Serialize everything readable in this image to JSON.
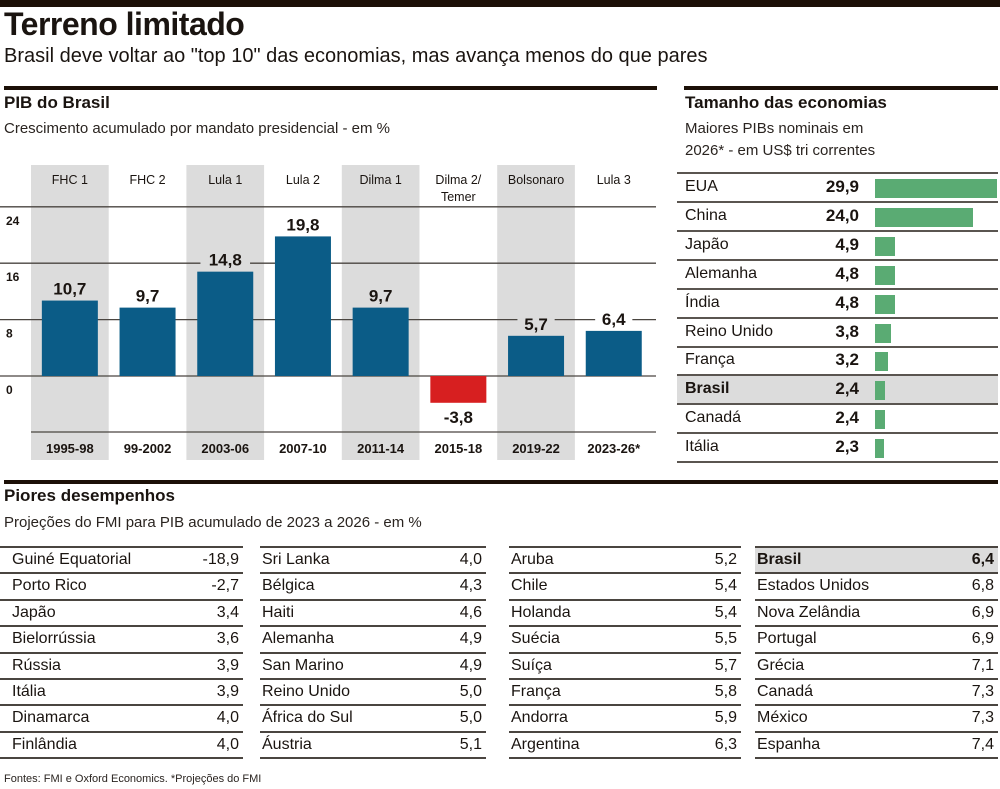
{
  "header": {
    "title": "Terreno limitado",
    "subtitle": "Brasil deve voltar ao \"top 10\" das economias, mas avança menos do que pares"
  },
  "pib_section": {
    "title": "PIB do Brasil",
    "subtitle": "Crescimento acumulado por mandato presidencial - em %"
  },
  "economies_section": {
    "title": "Tamanho das economias",
    "subtitle_line1": "Maiores PIBs nominais em",
    "subtitle_line2": "2026* - em US$ tri correntes"
  },
  "worst_section": {
    "title": "Piores desempenhos",
    "subtitle": "Projeções do FMI para PIB acumulado de 2023 a 2026 - em %"
  },
  "source": "Fontes: FMI e Oxford Economics. *Projeções do FMI",
  "colors": {
    "bar_positive": "#0b5c87",
    "bar_negative": "#d71f20",
    "bar_green": "#5aab73",
    "band_gray": "#dcdcdc",
    "highlight_gray": "#dcdcdc"
  },
  "chart_data": [
    {
      "type": "bar",
      "title": "PIB do Brasil",
      "subtitle": "Crescimento acumulado por mandato presidencial - em %",
      "categories": [
        "FHC 1",
        "FHC 2",
        "Lula 1",
        "Lula 2",
        "Dilma 1",
        "Dilma 2/ Temer",
        "Bolsonaro",
        "Lula 3"
      ],
      "category_lines": [
        [
          "FHC 1"
        ],
        [
          "FHC 2"
        ],
        [
          "Lula 1"
        ],
        [
          "Lula 2"
        ],
        [
          "Dilma 1"
        ],
        [
          "Dilma 2/",
          "Temer"
        ],
        [
          "Bolsonaro"
        ],
        [
          "Lula 3"
        ]
      ],
      "periods": [
        "1995-98",
        "99-2002",
        "2003-06",
        "2007-10",
        "2011-14",
        "2015-18",
        "2019-22",
        "2023-26*"
      ],
      "values": [
        10.7,
        9.7,
        14.8,
        19.8,
        9.7,
        -3.8,
        5.7,
        6.4
      ],
      "value_labels": [
        "10,7",
        "9,7",
        "14,8",
        "19,8",
        "9,7",
        "-3,8",
        "5,7",
        "6,4"
      ],
      "yticks": [
        0,
        8,
        16,
        24
      ],
      "ylim": [
        -8,
        27
      ],
      "grid": true,
      "xlabel": "",
      "ylabel": ""
    },
    {
      "type": "bar",
      "orientation": "horizontal",
      "title": "Tamanho das economias",
      "subtitle": "Maiores PIBs nominais em 2026* - em US$ tri correntes",
      "categories": [
        "EUA",
        "China",
        "Japão",
        "Alemanha",
        "Índia",
        "Reino Unido",
        "França",
        "Brasil",
        "Canadá",
        "Itália"
      ],
      "values": [
        29.9,
        24.0,
        4.9,
        4.8,
        4.8,
        3.8,
        3.2,
        2.4,
        2.4,
        2.3
      ],
      "value_labels": [
        "29,9",
        "24,0",
        "4,9",
        "4,8",
        "4,8",
        "3,8",
        "3,2",
        "2,4",
        "2,4",
        "2,3"
      ],
      "highlight": "Brasil",
      "xlim": [
        0,
        29.9
      ]
    },
    {
      "type": "table",
      "title": "Piores desempenhos",
      "subtitle": "Projeções do FMI para PIB acumulado de 2023 a 2026 - em %",
      "highlight": "Brasil",
      "columns": [
        [
          {
            "country": "Guiné Equatorial",
            "value": "-18,9"
          },
          {
            "country": "Porto Rico",
            "value": "-2,7"
          },
          {
            "country": "Japão",
            "value": "3,4"
          },
          {
            "country": "Bielorrússia",
            "value": "3,6"
          },
          {
            "country": "Rússia",
            "value": "3,9"
          },
          {
            "country": "Itália",
            "value": "3,9"
          },
          {
            "country": "Dinamarca",
            "value": "4,0"
          },
          {
            "country": "Finlândia",
            "value": "4,0"
          }
        ],
        [
          {
            "country": "Sri Lanka",
            "value": "4,0"
          },
          {
            "country": "Bélgica",
            "value": "4,3"
          },
          {
            "country": "Haiti",
            "value": "4,6"
          },
          {
            "country": "Alemanha",
            "value": "4,9"
          },
          {
            "country": "San Marino",
            "value": "4,9"
          },
          {
            "country": "Reino Unido",
            "value": "5,0"
          },
          {
            "country": "África do Sul",
            "value": "5,0"
          },
          {
            "country": "Áustria",
            "value": "5,1"
          }
        ],
        [
          {
            "country": "Aruba",
            "value": "5,2"
          },
          {
            "country": "Chile",
            "value": "5,4"
          },
          {
            "country": "Holanda",
            "value": "5,4"
          },
          {
            "country": "Suécia",
            "value": "5,5"
          },
          {
            "country": "Suíça",
            "value": "5,7"
          },
          {
            "country": "França",
            "value": "5,8"
          },
          {
            "country": "Andorra",
            "value": "5,9"
          },
          {
            "country": "Argentina",
            "value": "6,3"
          }
        ],
        [
          {
            "country": "Brasil",
            "value": "6,4"
          },
          {
            "country": "Estados Unidos",
            "value": "6,8"
          },
          {
            "country": "Nova Zelândia",
            "value": "6,9"
          },
          {
            "country": "Portugal",
            "value": "6,9"
          },
          {
            "country": "Grécia",
            "value": "7,1"
          },
          {
            "country": "Canadá",
            "value": "7,3"
          },
          {
            "country": "México",
            "value": "7,3"
          },
          {
            "country": "Espanha",
            "value": "7,4"
          }
        ]
      ]
    }
  ]
}
